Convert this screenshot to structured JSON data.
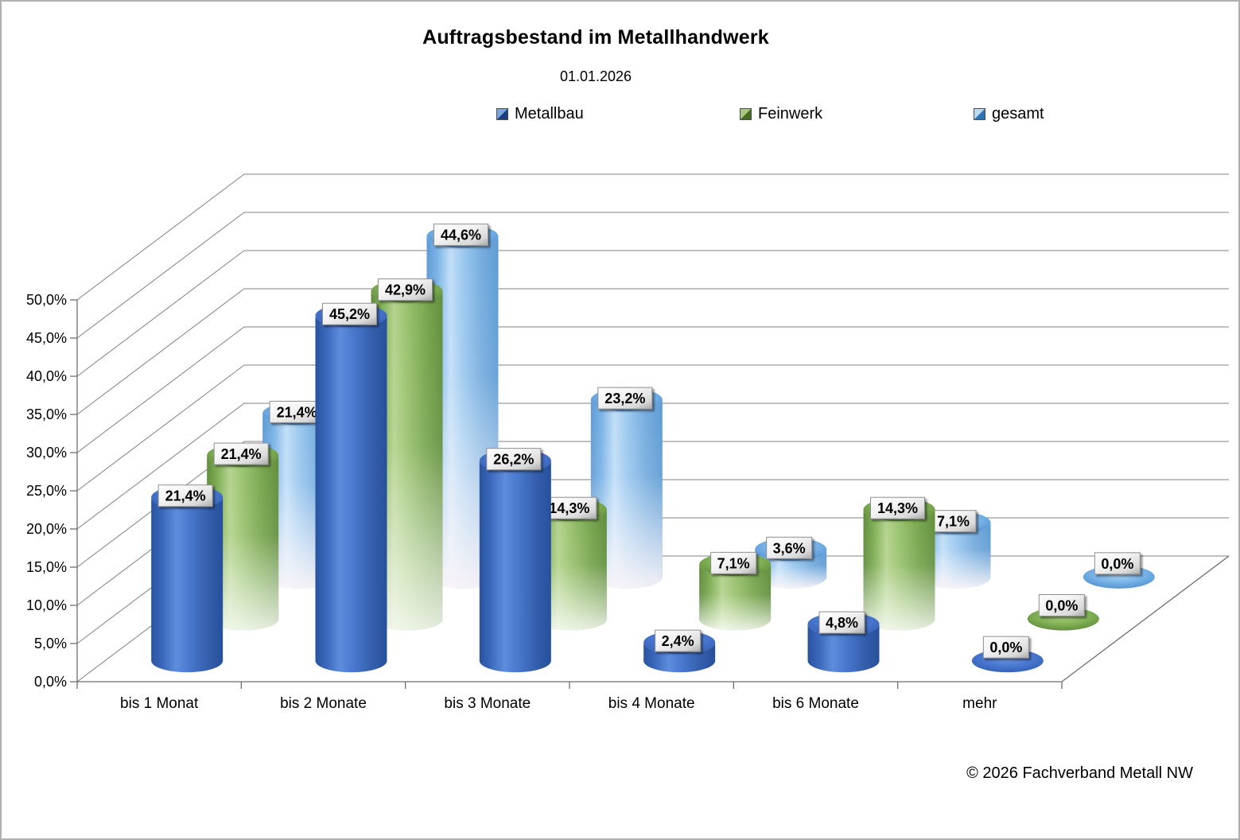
{
  "title": "Auftragsbestand im Metallhandwerk",
  "subtitle": "01.01.2026",
  "footer_copyright": "© 2026 Fachverband Metall NW",
  "legend": {
    "items": [
      {
        "label": "Metallbau",
        "color_light": "#7da7dc",
        "color_dark": "#1e3f7e"
      },
      {
        "label": "Feinwerk",
        "color_light": "#a8c97e",
        "color_dark": "#4a6b28"
      },
      {
        "label": "gesamt",
        "color_light": "#bdd9f0",
        "color_dark": "#2e74b5"
      }
    ]
  },
  "chart_data": {
    "type": "bar",
    "style": "3d-cylinder",
    "title": "Auftragsbestand im Metallhandwerk",
    "subtitle": "01.01.2026",
    "categories": [
      "bis 1 Monat",
      "bis 2 Monate",
      "bis 3 Monate",
      "bis 4 Monate",
      "bis 6 Monate",
      "mehr"
    ],
    "y_axis": {
      "min": 0,
      "max": 50,
      "step": 5,
      "tick_labels": [
        "0,0%",
        "5,0%",
        "10,0%",
        "15,0%",
        "20,0%",
        "25,0%",
        "30,0%",
        "35,0%",
        "40,0%",
        "45,0%",
        "50,0%"
      ]
    },
    "grid": true,
    "legend_position": "top",
    "series": [
      {
        "name": "Metallbau",
        "color": "#3a67c0",
        "values": [
          21.4,
          45.2,
          26.2,
          2.4,
          4.8,
          0.0
        ],
        "labels": [
          "21,4%",
          "45,2%",
          "26,2%",
          "2,4%",
          "4,8%",
          "0,0%"
        ]
      },
      {
        "name": "Feinwerk",
        "color": "#76a94c",
        "values": [
          21.4,
          42.9,
          14.3,
          7.1,
          14.3,
          0.0
        ],
        "labels": [
          "21,4%",
          "42,9%",
          "14,3%",
          "7,1%",
          "14,3%",
          "0,0%"
        ]
      },
      {
        "name": "gesamt",
        "color": "#7eb3e4",
        "values": [
          21.4,
          44.6,
          23.2,
          3.6,
          7.1,
          0.0
        ],
        "labels": [
          "21,4%",
          "44,6%",
          "23,2%",
          "3,6%",
          "7,1%",
          "0,0%"
        ]
      }
    ]
  }
}
